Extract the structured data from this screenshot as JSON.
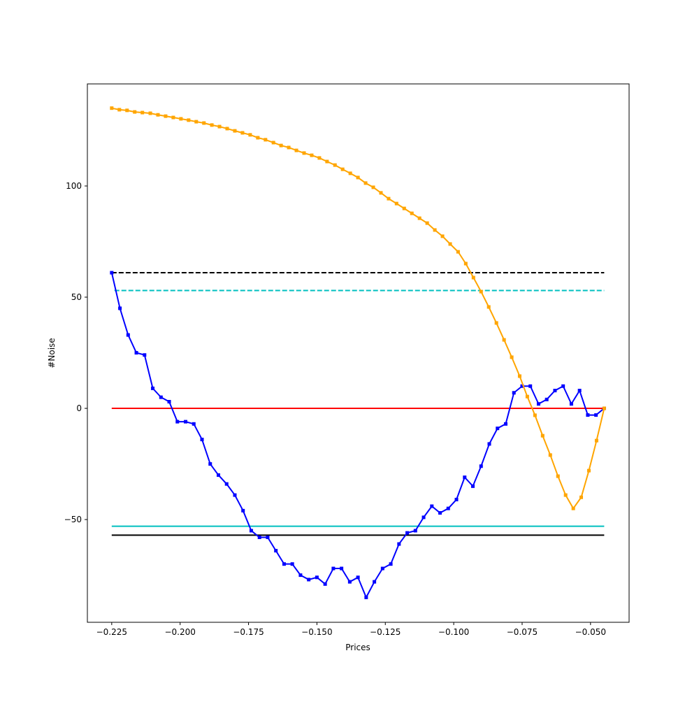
{
  "chart_data": {
    "type": "line",
    "xlabel": "Prices",
    "ylabel": "#Noise",
    "xlim": [
      -0.2339,
      -0.0359
    ],
    "ylim": [
      -96.2,
      145.9
    ],
    "xticks": [
      {
        "value": -0.225,
        "label": "−0.225"
      },
      {
        "value": -0.2,
        "label": "−0.200"
      },
      {
        "value": -0.175,
        "label": "−0.175"
      },
      {
        "value": -0.15,
        "label": "−0.150"
      },
      {
        "value": -0.125,
        "label": "−0.125"
      },
      {
        "value": -0.1,
        "label": "−0.100"
      },
      {
        "value": -0.075,
        "label": "−0.075"
      },
      {
        "value": -0.05,
        "label": "−0.050"
      }
    ],
    "yticks": [
      100,
      50,
      0,
      {
        "value": -50,
        "label": "−50"
      }
    ],
    "hlines": [
      {
        "value": 61,
        "color": "#000000",
        "style": "dashed",
        "xmin": -0.225,
        "xmax": -0.045
      },
      {
        "value": 53,
        "color": "#00bfbf",
        "style": "dashed",
        "xmin": -0.224,
        "xmax": -0.045
      },
      {
        "value": 0,
        "color": "#ff0000",
        "style": "solid",
        "xmin": -0.225,
        "xmax": -0.045
      },
      {
        "value": -53,
        "color": "#00bfbf",
        "style": "solid",
        "xmin": -0.225,
        "xmax": -0.045
      },
      {
        "value": -57,
        "color": "#000000",
        "style": "solid",
        "xmin": -0.225,
        "xmax": -0.045
      }
    ],
    "series": [
      {
        "color": "#0000ff",
        "x": [
          -0.225,
          -0.222,
          -0.219,
          -0.216,
          -0.213,
          -0.21,
          -0.207,
          -0.204,
          -0.201,
          -0.198,
          -0.195,
          -0.192,
          -0.189,
          -0.186,
          -0.183,
          -0.18,
          -0.177,
          -0.174,
          -0.171,
          -0.168,
          -0.165,
          -0.162,
          -0.159,
          -0.156,
          -0.153,
          -0.15,
          -0.147,
          -0.144,
          -0.141,
          -0.138,
          -0.135,
          -0.132,
          -0.129,
          -0.126,
          -0.123,
          -0.12,
          -0.117,
          -0.114,
          -0.111,
          -0.108,
          -0.105,
          -0.102,
          -0.099,
          -0.096,
          -0.093,
          -0.09,
          -0.087,
          -0.084,
          -0.081,
          -0.078,
          -0.075,
          -0.072,
          -0.069,
          -0.066,
          -0.063,
          -0.06,
          -0.057,
          -0.054,
          -0.051,
          -0.048,
          -0.045
        ],
        "values": [
          61,
          45,
          33,
          25,
          24,
          9,
          5,
          3,
          -6,
          -6,
          -7,
          -14,
          -25,
          -30,
          -34,
          -39,
          -46,
          -55,
          -58,
          -58,
          -64,
          -70,
          -70,
          -75,
          -77,
          -76,
          -79,
          -72,
          -72,
          -78,
          -76,
          -85,
          -78,
          -72,
          -70,
          -61,
          -56,
          -55,
          -49,
          -44,
          -47,
          -45,
          -41,
          -31,
          -35,
          -26,
          -16,
          -9,
          -7,
          7,
          10,
          10,
          2,
          4,
          8,
          10,
          2,
          8,
          -3,
          -3,
          0
        ]
      },
      {
        "color": "#ffa500",
        "x": [
          -0.225,
          -0.2222,
          -0.2194,
          -0.2166,
          -0.2138,
          -0.2109,
          -0.2081,
          -0.2053,
          -0.2025,
          -0.1997,
          -0.1969,
          -0.1941,
          -0.1913,
          -0.1884,
          -0.1856,
          -0.1828,
          -0.18,
          -0.1772,
          -0.1744,
          -0.1716,
          -0.1688,
          -0.1659,
          -0.1631,
          -0.1603,
          -0.1575,
          -0.1547,
          -0.1519,
          -0.1491,
          -0.1463,
          -0.1434,
          -0.1406,
          -0.1378,
          -0.135,
          -0.1322,
          -0.1294,
          -0.1266,
          -0.1238,
          -0.1209,
          -0.1181,
          -0.1153,
          -0.1125,
          -0.1097,
          -0.1069,
          -0.1041,
          -0.1013,
          -0.0984,
          -0.0956,
          -0.0928,
          -0.09,
          -0.0872,
          -0.0844,
          -0.0816,
          -0.0788,
          -0.0759,
          -0.0731,
          -0.0703,
          -0.0675,
          -0.0647,
          -0.0619,
          -0.0591,
          -0.0563,
          -0.0534,
          -0.0506,
          -0.0478,
          -0.045
        ],
        "values": [
          135,
          134.3,
          134,
          133.3,
          133,
          132.7,
          132,
          131.4,
          130.8,
          130.2,
          129.6,
          128.9,
          128.3,
          127.4,
          126.7,
          125.8,
          124.8,
          123.9,
          123,
          121.7,
          120.8,
          119.5,
          118.2,
          117.3,
          116,
          114.8,
          113.8,
          112.6,
          111,
          109.4,
          107.5,
          105.7,
          103.8,
          101.3,
          99.4,
          96.9,
          94.3,
          92.1,
          89.9,
          87.7,
          85.5,
          83.3,
          80.2,
          77.4,
          73.9,
          70.4,
          65.1,
          58.8,
          52.5,
          45.6,
          38.4,
          30.8,
          23,
          14.5,
          5.3,
          -3.1,
          -12.3,
          -21,
          -30.5,
          -39,
          -45,
          -40,
          -28,
          -14.5,
          0
        ]
      }
    ]
  }
}
